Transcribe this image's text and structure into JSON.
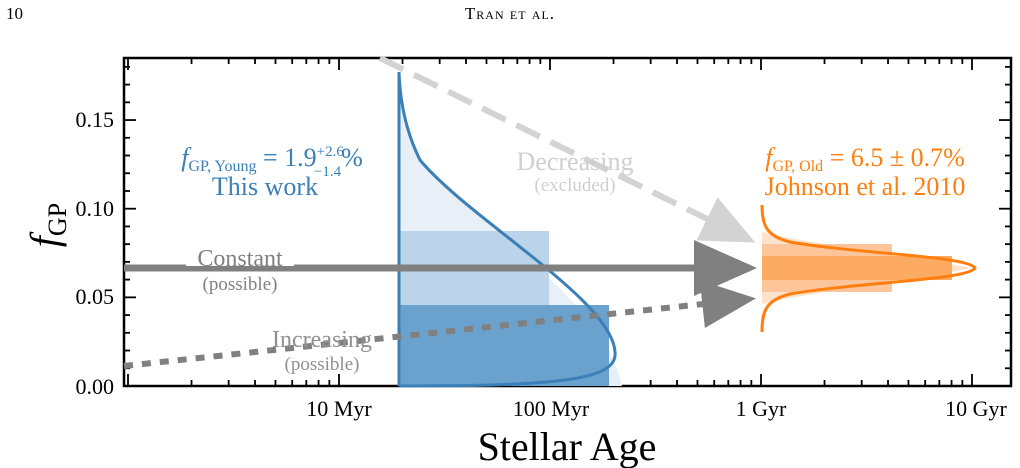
{
  "header": {
    "page_number": "10",
    "running_head": "Tran et al."
  },
  "figure": {
    "ylabel_main": "f",
    "ylabel_sub": "GP",
    "xlabel": "Stellar Age",
    "yticks": [
      {
        "v": 0.0,
        "label": "0.00"
      },
      {
        "v": 0.05,
        "label": "0.05"
      },
      {
        "v": 0.1,
        "label": "0.10"
      },
      {
        "v": 0.15,
        "label": "0.15"
      }
    ],
    "xticks": [
      {
        "v": 10,
        "label": "10 Myr"
      },
      {
        "v": 100,
        "label": "100 Myr"
      },
      {
        "v": 1000,
        "label": "1 Gyr"
      },
      {
        "v": 10000,
        "label": "10 Gyr"
      }
    ],
    "young": {
      "label_f": "f",
      "label_sub": "GP, Young",
      "label_eq": " = 1.9",
      "label_sup": "+2.6",
      "label_subs": "−1.4",
      "label_pct": "%",
      "label_line2": "This work",
      "color": "#3a7fb8"
    },
    "old": {
      "label_f": "f",
      "label_sub": "GP, Old",
      "label_eq": " = 6.5 ± 0.7%",
      "label_line2": "Johnson et al. 2010",
      "color": "#ff7f0e"
    },
    "scenarios": {
      "decreasing": {
        "name": "Decreasing",
        "note": "(excluded)"
      },
      "constant": {
        "name": "Constant",
        "note": "(possible)"
      },
      "increasing": {
        "name": "Increasing",
        "note": "(possible)"
      }
    }
  },
  "chart_data": {
    "type": "line",
    "xlabel": "Stellar Age",
    "ylabel": "f_GP",
    "x_scale": "log",
    "xlim_myr": [
      1.2,
      14000
    ],
    "ylim": [
      0,
      0.185
    ],
    "series": [
      {
        "name": "Decreasing",
        "status": "excluded",
        "x_myr": [
          19,
          900
        ],
        "y": [
          0.185,
          0.082
        ]
      },
      {
        "name": "Constant",
        "status": "possible",
        "x_myr": [
          1.2,
          900
        ],
        "y": [
          0.065,
          0.065
        ]
      },
      {
        "name": "Increasing",
        "status": "possible",
        "x_myr": [
          1.2,
          900
        ],
        "y": [
          0.01,
          0.048
        ]
      }
    ],
    "posteriors": [
      {
        "name": "This work (young)",
        "age_myr": 20,
        "median": 0.019,
        "err_plus": 0.026,
        "err_minus": 0.014
      },
      {
        "name": "Johnson et al. 2010 (old)",
        "age_myr": 1000,
        "median": 0.065,
        "err": 0.007
      }
    ]
  }
}
